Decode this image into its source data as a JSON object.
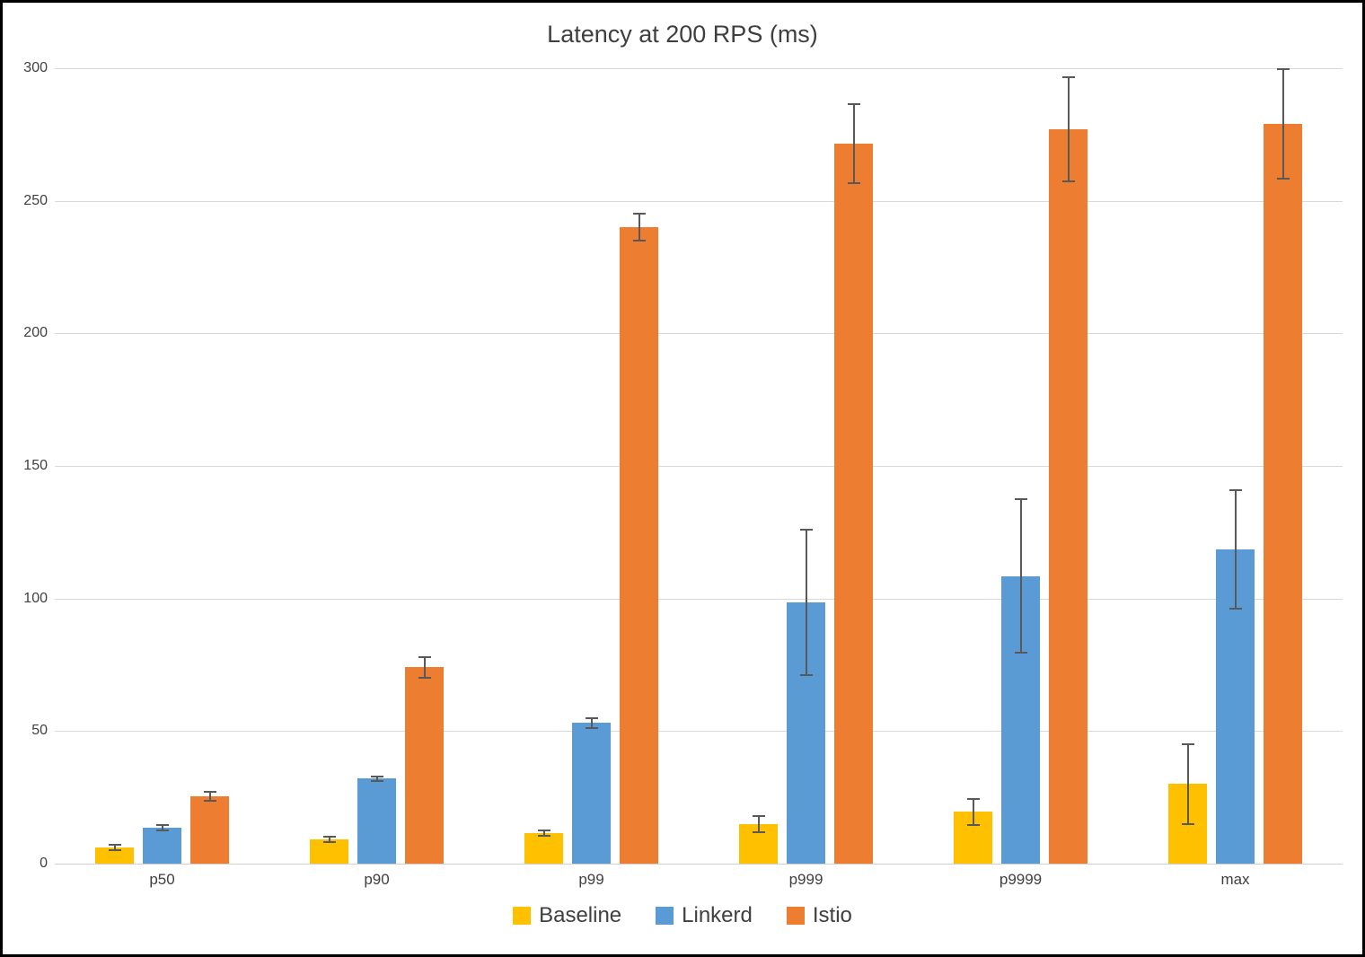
{
  "chart_data": {
    "type": "bar",
    "title": "Latency at 200 RPS (ms)",
    "xlabel": "",
    "ylabel": "",
    "categories": [
      "p50",
      "p90",
      "p99",
      "p999",
      "p9999",
      "max"
    ],
    "series": [
      {
        "name": "Baseline",
        "color": "#FFC000",
        "values": [
          6,
          9,
          11.5,
          15,
          19.5,
          30
        ],
        "errors": [
          1,
          1,
          1,
          3,
          5,
          15
        ]
      },
      {
        "name": "Linkerd",
        "color": "#5B9BD5",
        "values": [
          13.5,
          32,
          53,
          98.5,
          108.5,
          118.5
        ],
        "errors": [
          1,
          1,
          2,
          27.5,
          29,
          22.5
        ]
      },
      {
        "name": "Istio",
        "color": "#ED7D31",
        "values": [
          25.5,
          74,
          240,
          271.5,
          277,
          279
        ],
        "errors": [
          1.7,
          4,
          5,
          15,
          19.5,
          20.5
        ]
      }
    ],
    "ylim": [
      0,
      300
    ],
    "ytick_interval": 50,
    "grid": true,
    "error_bars": true,
    "error_bar_color": "#595959",
    "legend_position": "bottom",
    "background_color": "#FFFFFF",
    "gridline_color": "#D9D9D9",
    "text_color": "#404040"
  }
}
